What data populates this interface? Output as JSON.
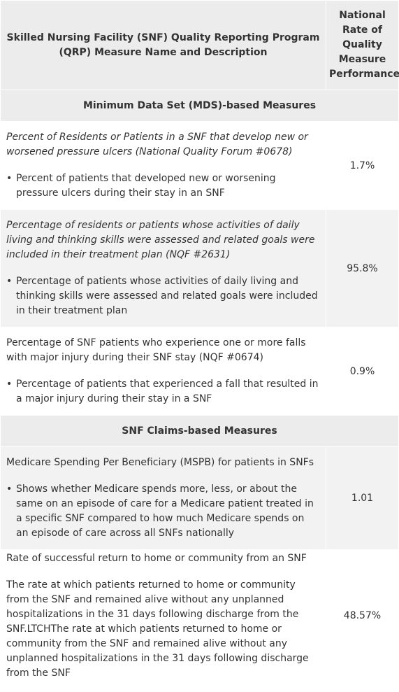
{
  "table": {
    "header": {
      "measure_col": "Skilled Nursing Facility (SNF) Quality Reporting Program (QRP) Measure Name and Description",
      "rate_col": "National Rate of Quality Measure Performance"
    },
    "sections": [
      {
        "title": "Minimum Data Set (MDS)-based Measures",
        "rows": [
          {
            "name": "Percent of Residents or Patients in a SNF that develop new or worsened pressure ulcers (National Quality Forum #0678)",
            "bullet": "Percent of patients that developed new or worsening pressure ulcers during their stay in an SNF",
            "value": "1.7%"
          },
          {
            "name": "Percentage of residents or patients whose activities of daily living and thinking skills were assessed and related goals were included in their treatment plan (NQF #2631)",
            "bullet": "Percentage of patients whose activities of daily living and thinking skills were assessed and related goals were included in their treatment plan",
            "value": "95.8%"
          },
          {
            "name": "Percentage of SNF patients who experience one or more falls with major injury during their SNF stay (NQF #0674)",
            "bullet": "Percentage of patients that experienced a fall that resulted in a major injury during their stay in a SNF",
            "value": "0.9%"
          }
        ]
      },
      {
        "title": "SNF Claims-based Measures",
        "rows": [
          {
            "name": "Medicare Spending Per Beneficiary (MSPB) for patients in SNFs",
            "bullet": "Shows whether Medicare spends more, less, or about the same on an episode of care for a Medicare patient treated in a specific SNF compared to how much Medicare spends on an episode of care across all SNFs nationally",
            "value": "1.01"
          },
          {
            "name": "Rate of successful return to home or community from an SNF",
            "description": "The rate at which patients returned to home or community from the SNF and remained alive without any unplanned hospitalizations in the 31 days following discharge from the SNF.LTCHThe rate at which patients returned to home or community from the SNF and remained alive without any unplanned hospitalizations in the 31 days following discharge from the SNF",
            "value": "48.57%"
          }
        ]
      }
    ]
  }
}
